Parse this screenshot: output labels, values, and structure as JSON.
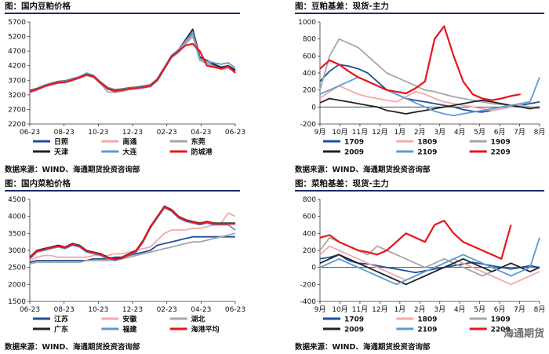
{
  "chart_data": [
    {
      "type": "line",
      "title": "图：国内豆粕价格",
      "source": "数据来源：WIND、海通期货投资咨询部",
      "x_ticks": [
        "06-23",
        "08-23",
        "10-23",
        "12-23",
        "02-23",
        "04-23",
        "06-23"
      ],
      "y_ticks": [
        2200,
        2700,
        3200,
        3700,
        4200,
        4700,
        5200,
        5700
      ],
      "ylim": [
        2200,
        5700
      ],
      "legend_cols": 3,
      "series": [
        {
          "name": "日照",
          "color": "#1f4e9c",
          "values": [
            3300,
            3380,
            3480,
            3560,
            3620,
            3640,
            3700,
            3780,
            3880,
            3820,
            3600,
            3400,
            3320,
            3350,
            3400,
            3420,
            3450,
            3500,
            3700,
            4100,
            4500,
            4700,
            5000,
            5300,
            4400,
            4300,
            4200,
            4100,
            4150,
            4000
          ]
        },
        {
          "name": "南通",
          "color": "#f4a9a8",
          "values": [
            3320,
            3400,
            3500,
            3570,
            3630,
            3650,
            3720,
            3800,
            3900,
            3840,
            3620,
            3430,
            3360,
            3380,
            3420,
            3450,
            3480,
            3520,
            3720,
            4120,
            4520,
            4680,
            4980,
            5250,
            4420,
            4320,
            4250,
            4150,
            4180,
            4050
          ]
        },
        {
          "name": "东莞",
          "color": "#a6a6a6",
          "values": [
            3280,
            3360,
            3470,
            3540,
            3600,
            3620,
            3690,
            3770,
            3860,
            3800,
            3580,
            3300,
            3280,
            3320,
            3380,
            3400,
            3430,
            3480,
            3680,
            4080,
            4480,
            4650,
            4950,
            5200,
            4380,
            4280,
            4180,
            4080,
            4120,
            3980
          ]
        },
        {
          "name": "天津",
          "color": "#222222",
          "values": [
            3350,
            3420,
            3520,
            3600,
            3660,
            3680,
            3750,
            3820,
            3920,
            3860,
            3640,
            3450,
            3380,
            3400,
            3440,
            3460,
            3500,
            3540,
            3750,
            4150,
            4550,
            4750,
            5100,
            5450,
            4500,
            4380,
            4250,
            4150,
            4200,
            4050
          ]
        },
        {
          "name": "大连",
          "color": "#5b9bd5",
          "values": [
            3330,
            3410,
            3510,
            3590,
            3650,
            3670,
            3740,
            3830,
            3950,
            3870,
            3630,
            3440,
            3370,
            3390,
            3430,
            3450,
            3490,
            3530,
            3740,
            4140,
            4540,
            4760,
            5050,
            5350,
            4450,
            4350,
            4300,
            4250,
            4300,
            4120
          ]
        },
        {
          "name": "防城港",
          "color": "#e8141c",
          "values": [
            3310,
            3390,
            3490,
            3560,
            3620,
            3640,
            3710,
            3790,
            3890,
            3830,
            3610,
            3420,
            3340,
            3360,
            3410,
            3430,
            3460,
            3500,
            3710,
            4110,
            4510,
            4700,
            4900,
            4950,
            4700,
            4200,
            4150,
            4100,
            4180,
            3950
          ]
        }
      ]
    },
    {
      "type": "line",
      "title": "图：豆粕基差：现货-主力",
      "source": "数据来源：WIND、海通期货投资咨询部",
      "x_ticks": [
        "9月",
        "10月",
        "11月",
        "12月",
        "1月",
        "2月",
        "3月",
        "4月",
        "5月",
        "6月",
        "7月",
        "8月"
      ],
      "y_ticks": [
        -200,
        0,
        200,
        400,
        600,
        800,
        1000
      ],
      "ylim": [
        -200,
        1000
      ],
      "legend_cols": 3,
      "series": [
        {
          "name": "1709",
          "color": "#1f4e9c",
          "values": [
            300,
            420,
            500,
            480,
            450,
            400,
            300,
            200,
            150,
            100,
            80,
            60,
            40,
            20,
            0,
            -30,
            -50,
            -60,
            -40,
            -20,
            0,
            20,
            40,
            60
          ]
        },
        {
          "name": "1809",
          "color": "#f4a9a8",
          "values": [
            100,
            180,
            250,
            200,
            150,
            120,
            100,
            80,
            60,
            120,
            180,
            150,
            100,
            60,
            40,
            20,
            0,
            -20,
            -40,
            -20,
            0,
            20,
            0,
            -20
          ]
        },
        {
          "name": "1909",
          "color": "#a6a6a6",
          "values": [
            200,
            600,
            800,
            750,
            700,
            600,
            500,
            400,
            350,
            300,
            250,
            200,
            180,
            150,
            120,
            100,
            80,
            60,
            40,
            30,
            20,
            10,
            0,
            -10
          ]
        },
        {
          "name": "2009",
          "color": "#222222",
          "values": [
            50,
            100,
            80,
            60,
            40,
            20,
            0,
            -40,
            -60,
            -80,
            -60,
            -40,
            -20,
            0,
            20,
            40,
            60,
            80,
            60,
            40,
            20,
            0,
            -20,
            0
          ]
        },
        {
          "name": "2109",
          "color": "#5b9bd5",
          "values": [
            150,
            200,
            250,
            300,
            350,
            300,
            250,
            200,
            150,
            100,
            50,
            0,
            -50,
            -80,
            -100,
            -80,
            -60,
            -40,
            -20,
            0,
            20,
            40,
            60,
            350
          ]
        },
        {
          "name": "2209",
          "color": "#e8141c",
          "values": [
            450,
            550,
            500,
            420,
            350,
            300,
            250,
            200,
            180,
            160,
            220,
            300,
            800,
            950,
            600,
            300,
            150,
            100,
            80,
            100,
            130,
            150,
            null,
            null
          ]
        }
      ]
    },
    {
      "type": "line",
      "title": "图：国内菜粕价格",
      "source": "数据来源：WIND、海通期货投资咨询部",
      "x_ticks": [
        "06-23",
        "08-23",
        "10-23",
        "12-23",
        "02-23",
        "04-23",
        "06-23"
      ],
      "y_ticks": [
        1500,
        2000,
        2500,
        3000,
        3500,
        4000,
        4500
      ],
      "ylim": [
        1500,
        4500
      ],
      "legend_cols": 3,
      "series": [
        {
          "name": "江苏",
          "color": "#1f4e9c",
          "values": [
            2650,
            2700,
            2700,
            2700,
            2700,
            2700,
            2700,
            2700,
            2700,
            2750,
            2750,
            2750,
            2800,
            2800,
            2850,
            2900,
            2950,
            3000,
            3150,
            3200,
            3250,
            3300,
            3350,
            3400,
            3400,
            3400,
            3400,
            3400,
            3400,
            3400
          ]
        },
        {
          "name": "安徽",
          "color": "#f4a9a8",
          "values": [
            2700,
            2800,
            2850,
            2850,
            2800,
            2800,
            2800,
            2800,
            2800,
            2850,
            2850,
            2850,
            2900,
            2900,
            2950,
            3000,
            3050,
            3100,
            3300,
            3500,
            3600,
            3600,
            3600,
            3650,
            3650,
            3700,
            3750,
            3800,
            4100,
            4000
          ]
        },
        {
          "name": "湖北",
          "color": "#a6a6a6",
          "values": [
            2600,
            2650,
            2650,
            2650,
            2650,
            2650,
            2650,
            2650,
            2700,
            2700,
            2700,
            2700,
            2750,
            2750,
            2800,
            2850,
            2900,
            2950,
            3000,
            3050,
            3100,
            3150,
            3200,
            3250,
            3250,
            3300,
            3350,
            3400,
            3450,
            3500
          ]
        },
        {
          "name": "广东",
          "color": "#222222",
          "values": [
            2800,
            3000,
            3050,
            3100,
            3150,
            3100,
            3200,
            3150,
            3000,
            2950,
            2900,
            2800,
            2750,
            2800,
            2900,
            3000,
            3300,
            3700,
            4000,
            4300,
            4200,
            4000,
            3900,
            3850,
            3800,
            3850,
            3800,
            3800,
            3800,
            3800
          ]
        },
        {
          "name": "福建",
          "color": "#5b9bd5",
          "values": [
            2750,
            2950,
            3000,
            3050,
            3100,
            3050,
            3150,
            3100,
            2950,
            2900,
            2850,
            2750,
            2700,
            2750,
            2850,
            2950,
            3250,
            3650,
            3950,
            4250,
            4150,
            3950,
            3850,
            3800,
            3750,
            3800,
            3750,
            3750,
            3750,
            3600
          ]
        },
        {
          "name": "海港平均",
          "color": "#e8141c",
          "values": [
            2780,
            2980,
            3030,
            3080,
            3130,
            3080,
            3180,
            3130,
            2980,
            2930,
            2880,
            2780,
            2730,
            2780,
            2880,
            2980,
            3280,
            3680,
            3980,
            4280,
            4180,
            3980,
            3880,
            3830,
            3780,
            3830,
            3780,
            3780,
            3780,
            3780
          ]
        }
      ]
    },
    {
      "type": "line",
      "title": "图：菜粕基差：现货-主力",
      "source": "数据来源：WIND、海通期货投资咨询部",
      "x_ticks": [
        "9月",
        "10月",
        "11月",
        "12月",
        "1月",
        "2月",
        "3月",
        "4月",
        "5月",
        "6月",
        "7月",
        "8月"
      ],
      "y_ticks": [
        -400,
        -200,
        0,
        200,
        400,
        600,
        800
      ],
      "ylim": [
        -400,
        800
      ],
      "legend_cols": 3,
      "series": [
        {
          "name": "1709",
          "color": "#1f4e9c",
          "values": [
            100,
            120,
            150,
            80,
            50,
            40,
            20,
            0,
            -20,
            -40,
            -60,
            -40,
            -20,
            0,
            20,
            40,
            60,
            40,
            20,
            0,
            -20,
            0,
            20,
            0
          ]
        },
        {
          "name": "1809",
          "color": "#f4a9a8",
          "values": [
            150,
            250,
            200,
            150,
            100,
            50,
            0,
            -50,
            -100,
            -150,
            -100,
            -50,
            0,
            50,
            100,
            50,
            0,
            -50,
            -100,
            -150,
            -200,
            -150,
            -100,
            -50
          ]
        },
        {
          "name": "1909",
          "color": "#a6a6a6",
          "values": [
            200,
            350,
            300,
            250,
            200,
            150,
            250,
            200,
            150,
            100,
            50,
            0,
            50,
            100,
            50,
            0,
            -50,
            -100,
            -50,
            0,
            50,
            0,
            -50,
            0
          ]
        },
        {
          "name": "2009",
          "color": "#222222",
          "values": [
            50,
            100,
            150,
            100,
            50,
            0,
            -50,
            -100,
            -150,
            -200,
            -150,
            -100,
            -50,
            0,
            50,
            100,
            50,
            0,
            -50,
            0,
            50,
            0,
            -50,
            0
          ]
        },
        {
          "name": "2109",
          "color": "#5b9bd5",
          "values": [
            0,
            50,
            100,
            50,
            0,
            -50,
            -100,
            -150,
            -200,
            -150,
            -100,
            -50,
            0,
            50,
            100,
            150,
            100,
            50,
            0,
            -50,
            -100,
            -50,
            0,
            350
          ]
        },
        {
          "name": "2209",
          "color": "#e8141c",
          "values": [
            350,
            380,
            300,
            250,
            200,
            180,
            150,
            200,
            300,
            400,
            350,
            300,
            500,
            550,
            400,
            300,
            250,
            200,
            150,
            100,
            500,
            null,
            null,
            null
          ]
        }
      ]
    }
  ],
  "watermark": "海通期货"
}
